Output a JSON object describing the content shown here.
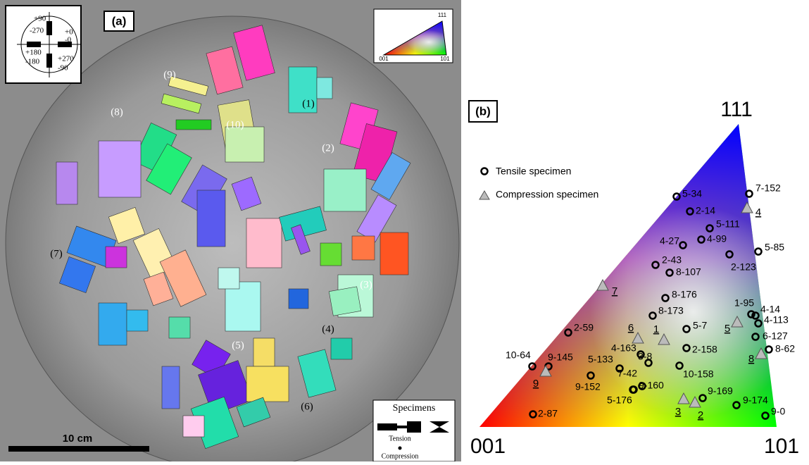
{
  "panel_a": {
    "label": "(a)",
    "polar_key": [
      "+90",
      "-270",
      "+0",
      "-0",
      "+180",
      "-180",
      "+270",
      "-90"
    ],
    "ipf_key": [
      "111",
      "001",
      "101"
    ],
    "groups": [
      "(1)",
      "(2)",
      "(3)",
      "(4)",
      "(5)",
      "(6)",
      "(7)",
      "(8)",
      "(9)",
      "(10)"
    ],
    "scale_bar": "10 cm",
    "legend_title": "Specimens",
    "legend_items": [
      "Tension",
      "Compression"
    ]
  },
  "panel_b": {
    "label": "(b)",
    "corners": [
      "111",
      "001",
      "101"
    ],
    "legend": [
      "Tensile specimen",
      "Compression specimen"
    ],
    "tensile": [
      "5-34",
      "7-152",
      "2-14",
      "5-111",
      "4-27",
      "4-99",
      "5-85",
      "2-43",
      "8-107",
      "2-123",
      "8-176",
      "1-95",
      "4-14",
      "4-113",
      "6-127",
      "8-62",
      "8-173",
      "5-7",
      "2-59",
      "4-163",
      "3-8",
      "2-158",
      "10-64",
      "9-145",
      "5-133",
      "10-158",
      "9-152",
      "7-42",
      "9-160",
      "5-176",
      "9-169",
      "9-174",
      "9-0",
      "2-87"
    ],
    "compression": [
      "4",
      "7",
      "6",
      "1",
      "5",
      "8",
      "9",
      "3",
      "2"
    ]
  }
}
